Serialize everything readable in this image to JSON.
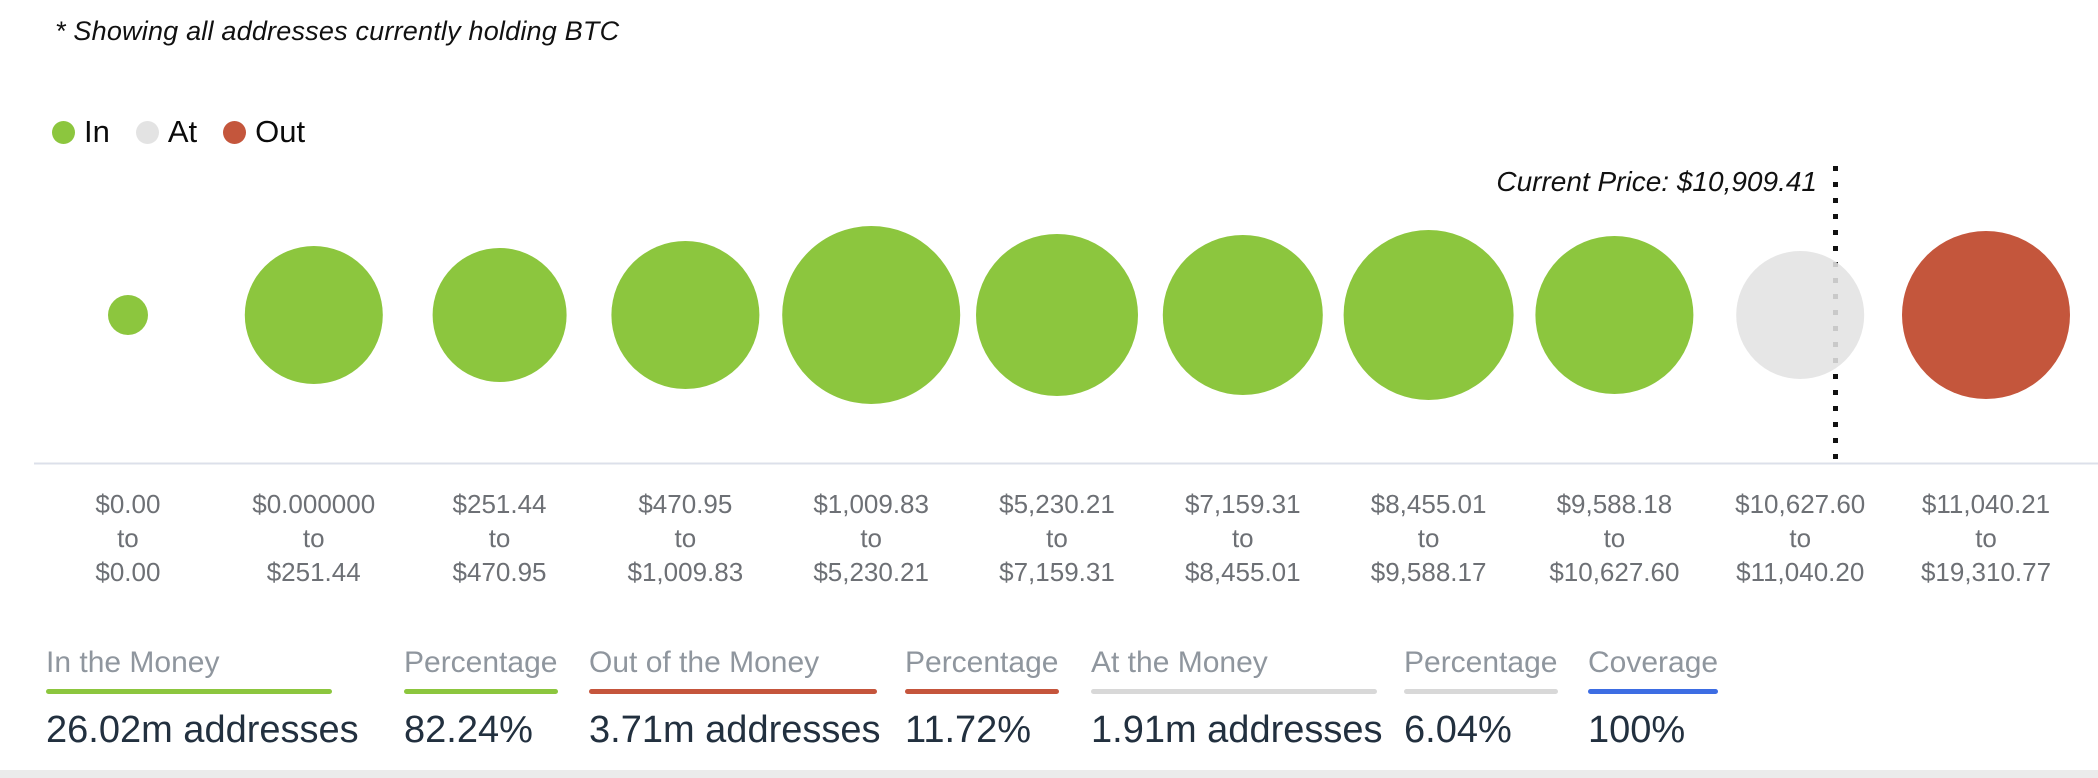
{
  "annotation": "* Showing all addresses currently holding BTC",
  "legend": {
    "items": [
      {
        "label": "In",
        "status": "in"
      },
      {
        "label": "At",
        "status": "at"
      },
      {
        "label": "Out",
        "status": "out"
      }
    ]
  },
  "colors": {
    "in": "#8CC63E",
    "at": "#E3E3E3",
    "out": "#C4563C",
    "underline_green": "#8CC63E",
    "underline_red": "#C5553C",
    "underline_gray": "#D8D8D8",
    "underline_blue": "#3D6DE3",
    "axis_line": "#DCE0EA",
    "price_line": "#111111"
  },
  "current_price": {
    "label": "Current Price: $10,909.41",
    "value": "$10,909.41"
  },
  "axis": {
    "separator": "to"
  },
  "chart_data": {
    "type": "bubble",
    "x_categories": [
      {
        "from": "$0.00",
        "to": "$0.00"
      },
      {
        "from": "$0.000000",
        "to": "$251.44"
      },
      {
        "from": "$251.44",
        "to": "$470.95"
      },
      {
        "from": "$470.95",
        "to": "$1,009.83"
      },
      {
        "from": "$1,009.83",
        "to": "$5,230.21"
      },
      {
        "from": "$5,230.21",
        "to": "$7,159.31"
      },
      {
        "from": "$7,159.31",
        "to": "$8,455.01"
      },
      {
        "from": "$8,455.01",
        "to": "$9,588.17"
      },
      {
        "from": "$9,588.18",
        "to": "$10,627.60"
      },
      {
        "from": "$10,627.60",
        "to": "$11,040.20"
      },
      {
        "from": "$11,040.21",
        "to": "$19,310.77"
      }
    ],
    "points": [
      {
        "status": "in",
        "radius_px": 20
      },
      {
        "status": "in",
        "radius_px": 69
      },
      {
        "status": "in",
        "radius_px": 67
      },
      {
        "status": "in",
        "radius_px": 74
      },
      {
        "status": "in",
        "radius_px": 89
      },
      {
        "status": "in",
        "radius_px": 81
      },
      {
        "status": "in",
        "radius_px": 80
      },
      {
        "status": "in",
        "radius_px": 85
      },
      {
        "status": "in",
        "radius_px": 79
      },
      {
        "status": "at",
        "radius_px": 64
      },
      {
        "status": "out",
        "radius_px": 84
      }
    ],
    "legend_entries": [
      "In",
      "At",
      "Out"
    ],
    "annotation": "Current Price: $10,909.41",
    "grid": false,
    "legend_position": "top-left"
  },
  "stats": [
    {
      "label": "In the Money",
      "value": "26.02m addresses",
      "underline": "underline_green"
    },
    {
      "label": "Percentage",
      "value": "82.24%",
      "underline": "underline_green"
    },
    {
      "label": "Out of the Money",
      "value": "3.71m addresses",
      "underline": "underline_red"
    },
    {
      "label": "Percentage",
      "value": "11.72%",
      "underline": "underline_red"
    },
    {
      "label": "At the Money",
      "value": "1.91m addresses",
      "underline": "underline_gray"
    },
    {
      "label": "Percentage",
      "value": "6.04%",
      "underline": "underline_gray"
    },
    {
      "label": "Coverage",
      "value": "100%",
      "underline": "underline_blue"
    }
  ]
}
